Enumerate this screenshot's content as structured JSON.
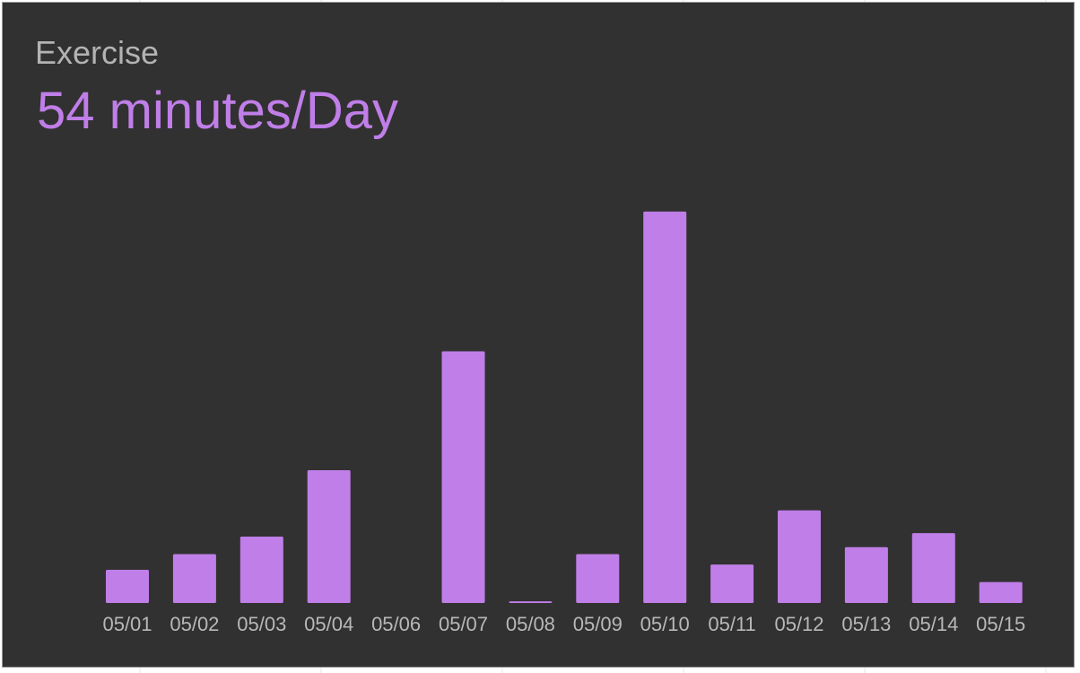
{
  "card": {
    "title": "Exercise",
    "value": "54 minutes/Day"
  },
  "colors": {
    "background": "#313131",
    "bar": "#c07ee8",
    "title": "#b3b3b3",
    "tick": "#b8b8b8",
    "border": "#9a9a9a"
  },
  "chart_data": {
    "type": "bar",
    "categories": [
      "05/01",
      "05/02",
      "05/03",
      "05/04",
      "05/06",
      "05/07",
      "05/08",
      "05/09",
      "05/10",
      "05/11",
      "05/12",
      "05/13",
      "05/14",
      "05/15"
    ],
    "values": [
      19,
      28,
      38,
      76,
      0,
      144,
      1,
      28,
      224,
      22,
      53,
      32,
      40,
      12
    ],
    "title": "",
    "xlabel": "",
    "ylabel": "",
    "ylim": [
      0,
      230
    ],
    "grid": false,
    "legend": "none"
  }
}
